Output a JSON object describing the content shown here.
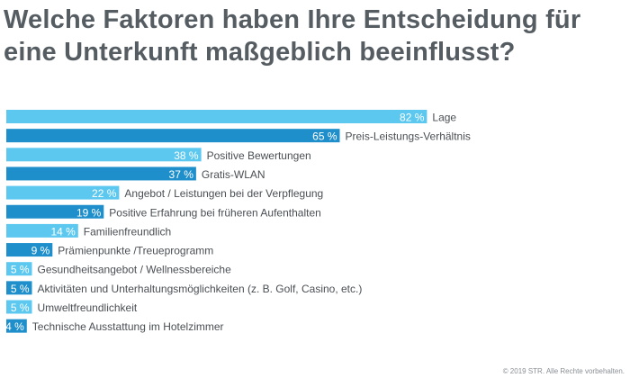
{
  "title": "Welche Faktoren haben Ihre Entscheidung für eine Unterkunft maßgeblich beeinflusst?",
  "copyright": "© 2019 STR. Alle Rechte vorbehalten.",
  "colors": {
    "light": "#5cc8f0",
    "dark": "#1f8fcc",
    "title": "#555d63",
    "label": "#4a4f54",
    "value": "#ffffff"
  },
  "chart_data": {
    "type": "bar",
    "orientation": "horizontal",
    "unit": "%",
    "xlim": [
      0,
      100
    ],
    "grid": false,
    "legend": "none",
    "categories": [
      "Lage",
      "Preis-Leistungs-Verhältnis",
      "Positive Bewertungen",
      "Gratis-WLAN",
      "Angebot / Leistungen bei der Verpflegung",
      "Positive Erfahrung bei früheren Aufenthalten",
      "Familienfreundlich",
      "Prämienpunkte /Treueprogramm",
      "Gesundheitsangebot / Wellnessbereiche",
      "Aktivitäten und Unterhaltungsmöglichkeiten (z. B. Golf, Casino, etc.)",
      "Umweltfreundlichkeit",
      "Technische Ausstattung im Hotelzimmer"
    ],
    "values": [
      82,
      65,
      38,
      37,
      22,
      19,
      14,
      9,
      5,
      5,
      5,
      4
    ],
    "value_labels": [
      "82 %",
      "65 %",
      "38 %",
      "37 %",
      "22 %",
      "19 %",
      "14 %",
      "9 %",
      "5 %",
      "5 %",
      "5 %",
      "4 %"
    ]
  }
}
